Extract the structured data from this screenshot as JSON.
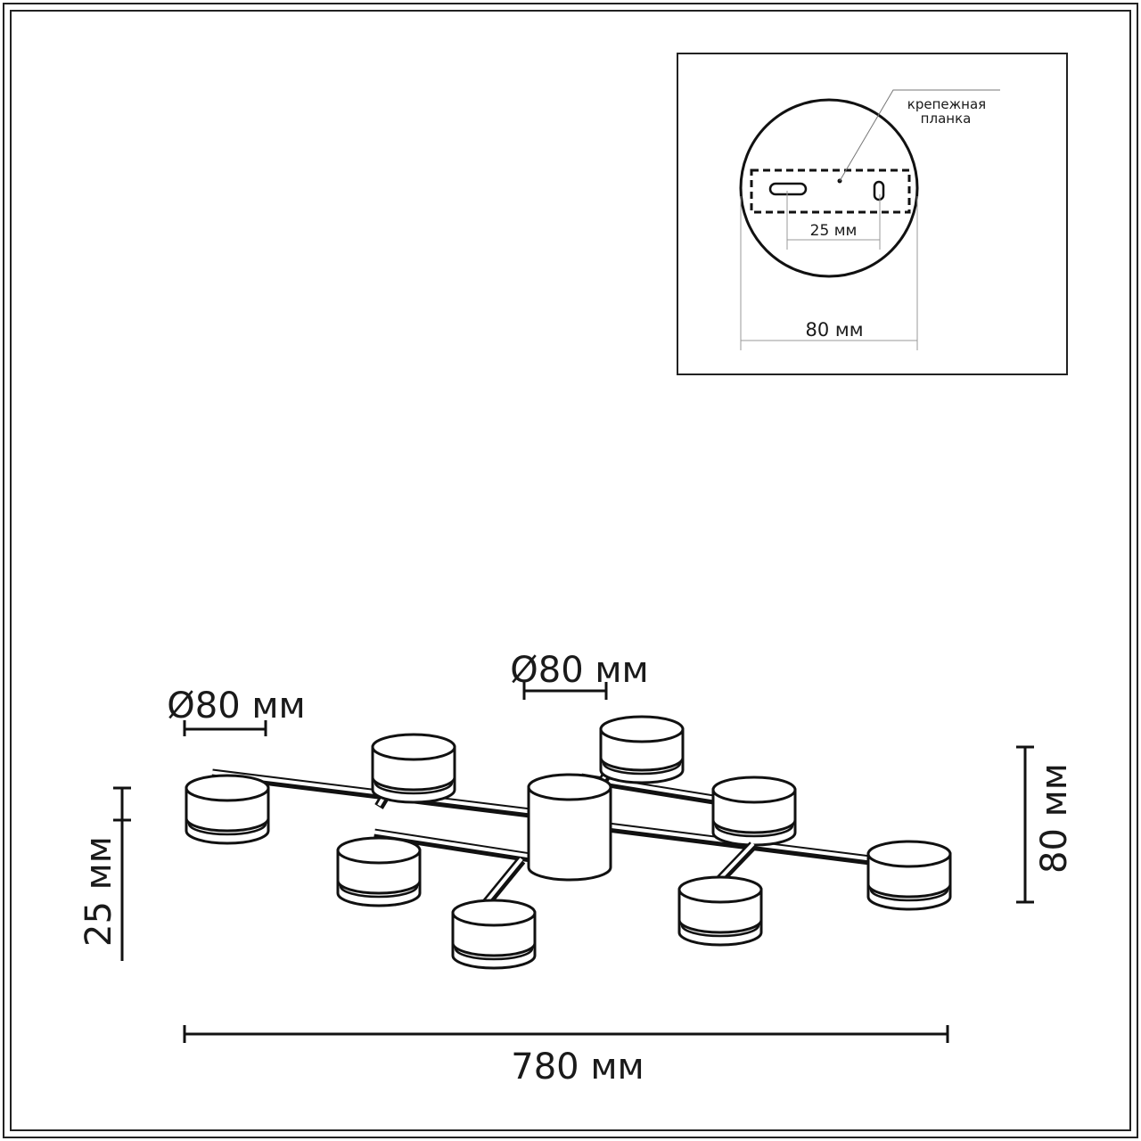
{
  "inset": {
    "callout_line1": "крепежная",
    "callout_line2": "планка",
    "hole_spacing": "25 мм",
    "base_diameter": "80 мм"
  },
  "dimensions": {
    "shade_diameter_left": "Ø80 мм",
    "shade_diameter_center": "Ø80 мм",
    "shade_height": "25 мм",
    "total_height": "80 мм",
    "total_width": "780 мм"
  },
  "colors": {
    "line": "#111111",
    "dim_line": "#999999"
  }
}
